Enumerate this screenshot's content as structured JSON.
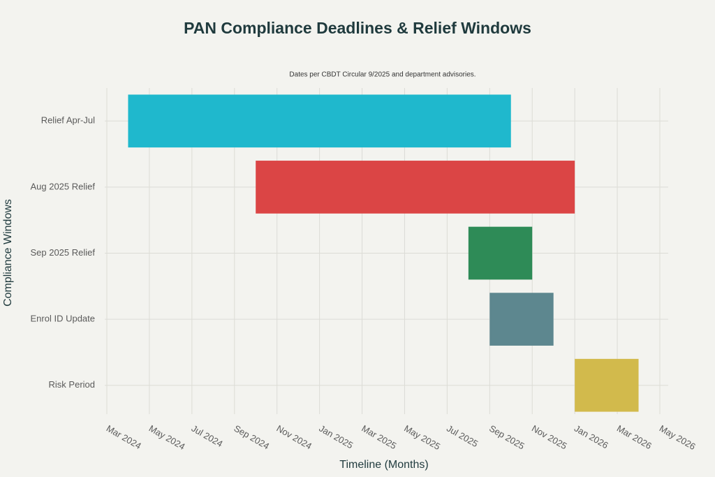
{
  "chart_data": {
    "type": "gantt",
    "title": "PAN Compliance Deadlines & Relief Windows",
    "subtitle": "Dates per CBDT Circular 9/2025 and department advisories.",
    "x_label": "Timeline (Months)",
    "y_label": "Compliance Windows",
    "categories": [
      "Relief Apr-Jul",
      "Aug 2025 Relief",
      "Sep 2025 Relief",
      "Enrol ID Update",
      "Risk Period"
    ],
    "start": [
      "2024-04",
      "2024-10",
      "2025-08",
      "2025-09",
      "2026-01"
    ],
    "end": [
      "2025-10",
      "2026-01",
      "2025-11",
      "2025-12",
      "2026-04"
    ],
    "colors": [
      "#1fb8cd",
      "#db4545",
      "#2e8b57",
      "#5d878f",
      "#d2ba4c"
    ],
    "xlim": [
      "2024-03",
      "2026-05"
    ],
    "xticks": [
      {
        "value": "2024-03",
        "label": "Mar 2024"
      },
      {
        "value": "2024-05",
        "label": "May 2024"
      },
      {
        "value": "2024-07",
        "label": "Jul 2024"
      },
      {
        "value": "2024-09",
        "label": "Sep 2024"
      },
      {
        "value": "2024-11",
        "label": "Nov 2024"
      },
      {
        "value": "2025-01",
        "label": "Jan 2025"
      },
      {
        "value": "2025-03",
        "label": "Mar 2025"
      },
      {
        "value": "2025-05",
        "label": "May 2025"
      },
      {
        "value": "2025-07",
        "label": "Jul 2025"
      },
      {
        "value": "2025-09",
        "label": "Sep 2025"
      },
      {
        "value": "2025-11",
        "label": "Nov 2025"
      },
      {
        "value": "2026-01",
        "label": "Jan 2026"
      },
      {
        "value": "2026-03",
        "label": "Mar 2026"
      },
      {
        "value": "2026-05",
        "label": "May 2026"
      }
    ],
    "grid": true
  }
}
